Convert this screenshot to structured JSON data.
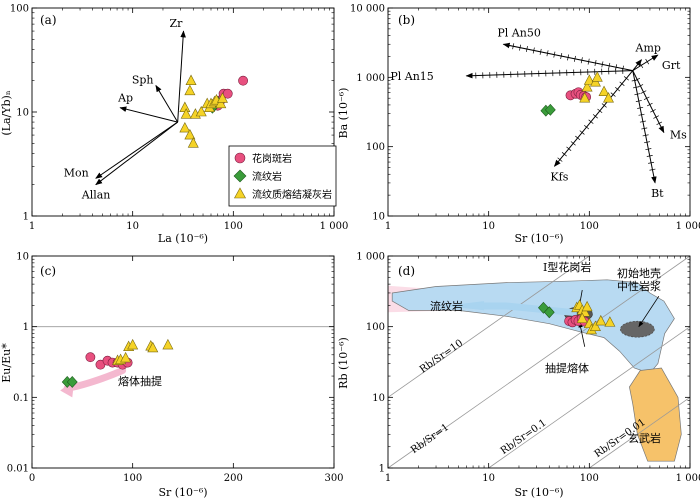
{
  "colors": {
    "pink": "#e8507f",
    "green": "#3a9c3a",
    "yellow": "#f5d327",
    "melt_arrow": "#f4b8cf",
    "rhyolite_field": "#fbd9e4",
    "granite_field": "#b8daf2",
    "basalt_field": "#f6c26a",
    "crust_field": "#666666"
  },
  "chart_data": [
    {
      "id": "a",
      "type": "scatter",
      "panel_label": "(a)",
      "xscale": "log",
      "yscale": "log",
      "xlim": [
        1,
        1000
      ],
      "ylim": [
        1,
        100
      ],
      "xlabel": "La (10⁻⁶)",
      "ylabel": "(La/Yb)ₙ",
      "xticks": [
        "1",
        "10",
        "100",
        "1 000"
      ],
      "yticks": [
        "1",
        "10",
        "100"
      ],
      "legend": {
        "placement": "bottom-right",
        "entries": [
          {
            "series": "granite_porphyry",
            "label": "花岗斑岩"
          },
          {
            "series": "rhyolite",
            "label": "流纹岩"
          },
          {
            "series": "welded_tuff",
            "label": "流纹质熔结凝灰岩"
          }
        ]
      },
      "series": [
        {
          "id": "granite_porphyry",
          "marker": "circle",
          "color": "pink",
          "points": [
            [
              65,
              12
            ],
            [
              70,
              11.5
            ],
            [
              75,
              13
            ],
            [
              80,
              15
            ],
            [
              88,
              15
            ],
            [
              125,
              20
            ]
          ]
        },
        {
          "id": "rhyolite",
          "marker": "diamond",
          "color": "green",
          "points": [
            [
              62,
              11
            ],
            [
              70,
              12.5
            ]
          ]
        },
        {
          "id": "welded_tuff",
          "marker": "triangle",
          "color": "yellow",
          "points": [
            [
              38,
              20
            ],
            [
              37,
              16
            ],
            [
              33,
              11
            ],
            [
              34,
              9.5
            ],
            [
              33,
              7
            ],
            [
              37,
              6
            ],
            [
              40,
              5
            ],
            [
              42,
              9.5
            ],
            [
              48,
              10
            ],
            [
              55,
              12
            ],
            [
              58,
              11
            ],
            [
              60,
              12
            ],
            [
              65,
              12.5
            ],
            [
              68,
              13
            ],
            [
              75,
              12
            ],
            [
              78,
              13.5
            ]
          ]
        }
      ],
      "vectors": {
        "origin": [
          28,
          8
        ],
        "items": [
          {
            "label": "Zr",
            "end": [
              32,
              60
            ]
          },
          {
            "label": "Sph",
            "end": [
              17,
              18
            ]
          },
          {
            "label": "Ap",
            "end": [
              7.5,
              11
            ]
          },
          {
            "label": "Mon",
            "end": [
              4.3,
              2.3
            ]
          },
          {
            "label": "Allan",
            "end": [
              4.3,
              2.0
            ]
          }
        ]
      }
    },
    {
      "id": "b",
      "type": "scatter",
      "panel_label": "(b)",
      "xscale": "log",
      "yscale": "log",
      "xlim": [
        1,
        1000
      ],
      "ylim": [
        10,
        10000
      ],
      "xlabel": "Sr (10⁻⁶)",
      "ylabel": "Ba (10⁻⁶)",
      "xticks": [
        "1",
        "10",
        "100",
        "1 000"
      ],
      "yticks": [
        "10",
        "100",
        "1 000",
        "10 000"
      ],
      "series": [
        {
          "id": "granite_porphyry",
          "marker": "circle",
          "color": "pink",
          "points": [
            [
              65,
              550
            ],
            [
              73,
              580
            ],
            [
              78,
              610
            ],
            [
              82,
              560
            ],
            [
              88,
              540
            ],
            [
              93,
              520
            ]
          ]
        },
        {
          "id": "rhyolite",
          "marker": "diamond",
          "color": "green",
          "points": [
            [
              37,
              330
            ],
            [
              41,
              340
            ]
          ]
        },
        {
          "id": "welded_tuff",
          "marker": "triangle",
          "color": "yellow",
          "points": [
            [
              90,
              500
            ],
            [
              95,
              720
            ],
            [
              100,
              900
            ],
            [
              115,
              850
            ],
            [
              120,
              1000
            ],
            [
              140,
              620
            ],
            [
              155,
              500
            ]
          ]
        }
      ],
      "vectors": {
        "origin": [
          270,
          1250
        ],
        "items": [
          {
            "label": "Pl An50",
            "end": [
              14,
              3000
            ]
          },
          {
            "label": "Pl An15",
            "end": [
              6,
              1050
            ]
          },
          {
            "label": "Amp",
            "end": [
              330,
              1800
            ]
          },
          {
            "label": "Grt",
            "end": [
              480,
              2100
            ]
          },
          {
            "label": "Ms",
            "end": [
              550,
              160
            ]
          },
          {
            "label": "Kfs",
            "end": [
              45,
              52
            ]
          },
          {
            "label": "Bt",
            "end": [
              450,
              30
            ]
          }
        ]
      }
    },
    {
      "id": "c",
      "type": "scatter",
      "panel_label": "(c)",
      "xscale": "linear",
      "yscale": "log",
      "xlim": [
        0,
        300
      ],
      "ylim": [
        0.01,
        10
      ],
      "xlabel": "Sr (10⁻⁶)",
      "ylabel": "Eu/Eu*",
      "xticks": [
        "0",
        "100",
        "200",
        "300"
      ],
      "yticks": [
        "0.01",
        "0.1",
        "1",
        "10"
      ],
      "reference_line": 1,
      "annotations": [
        {
          "id": "melt_extraction",
          "text": "熔体抽提"
        }
      ],
      "series": [
        {
          "id": "granite_porphyry",
          "marker": "circle",
          "color": "pink",
          "points": [
            [
              58,
              0.37
            ],
            [
              68,
              0.29
            ],
            [
              75,
              0.33
            ],
            [
              80,
              0.31
            ],
            [
              85,
              0.31
            ],
            [
              90,
              0.29
            ],
            [
              95,
              0.31
            ]
          ]
        },
        {
          "id": "rhyolite",
          "marker": "diamond",
          "color": "green",
          "points": [
            [
              35,
              0.165
            ],
            [
              40,
              0.165
            ]
          ]
        },
        {
          "id": "welded_tuff",
          "marker": "triangle",
          "color": "yellow",
          "points": [
            [
              85,
              0.33
            ],
            [
              88,
              0.34
            ],
            [
              93,
              0.36
            ],
            [
              96,
              0.52
            ],
            [
              100,
              0.55
            ],
            [
              118,
              0.53
            ],
            [
              120,
              0.5
            ],
            [
              135,
              0.55
            ]
          ]
        }
      ]
    },
    {
      "id": "d",
      "type": "scatter",
      "panel_label": "(d)",
      "xscale": "log",
      "yscale": "log",
      "xlim": [
        1,
        1000
      ],
      "ylim": [
        1,
        1000
      ],
      "xlabel": "Sr (10⁻⁶)",
      "ylabel": "Rb (10⁻⁶)",
      "xticks": [
        "1",
        "10",
        "100",
        "1 000"
      ],
      "yticks": [
        "1",
        "10",
        "100",
        "1 000"
      ],
      "ratio_lines": [
        {
          "ratio": 10,
          "label": "Rb/Sr=10"
        },
        {
          "ratio": 1,
          "label": "Rb/Sr=1"
        },
        {
          "ratio": 0.1,
          "label": "Rb/Sr=0.1"
        },
        {
          "ratio": 0.01,
          "label": "Rb/Sr=0.01"
        }
      ],
      "fields": [
        {
          "id": "rhyolite_field",
          "label": "流纹岩"
        },
        {
          "id": "i_type_granite",
          "label": "I型花岗岩"
        },
        {
          "id": "early_crust",
          "label_lines": [
            "初始地壳",
            "中性岩浆"
          ]
        },
        {
          "id": "basalt",
          "label": "玄武岩"
        }
      ],
      "annotations": [
        {
          "id": "melt_extraction",
          "text": "抽提熔体"
        }
      ],
      "series": [
        {
          "id": "granite_porphyry",
          "marker": "circle",
          "color": "pink",
          "points": [
            [
              63,
              120
            ],
            [
              68,
              115
            ],
            [
              73,
              125
            ],
            [
              78,
              120
            ],
            [
              84,
              130
            ],
            [
              90,
              118
            ]
          ]
        },
        {
          "id": "rhyolite",
          "marker": "diamond",
          "color": "green",
          "points": [
            [
              35,
              185
            ],
            [
              40,
              160
            ]
          ]
        },
        {
          "id": "welded_tuff",
          "marker": "triangle",
          "color": "yellow",
          "points": [
            [
              75,
              185
            ],
            [
              80,
              200
            ],
            [
              85,
              170
            ],
            [
              90,
              160
            ],
            [
              95,
              190
            ],
            [
              100,
              110
            ],
            [
              105,
              90
            ],
            [
              115,
              100
            ],
            [
              130,
              120
            ],
            [
              160,
              115
            ],
            [
              85,
              130
            ]
          ]
        }
      ]
    }
  ]
}
